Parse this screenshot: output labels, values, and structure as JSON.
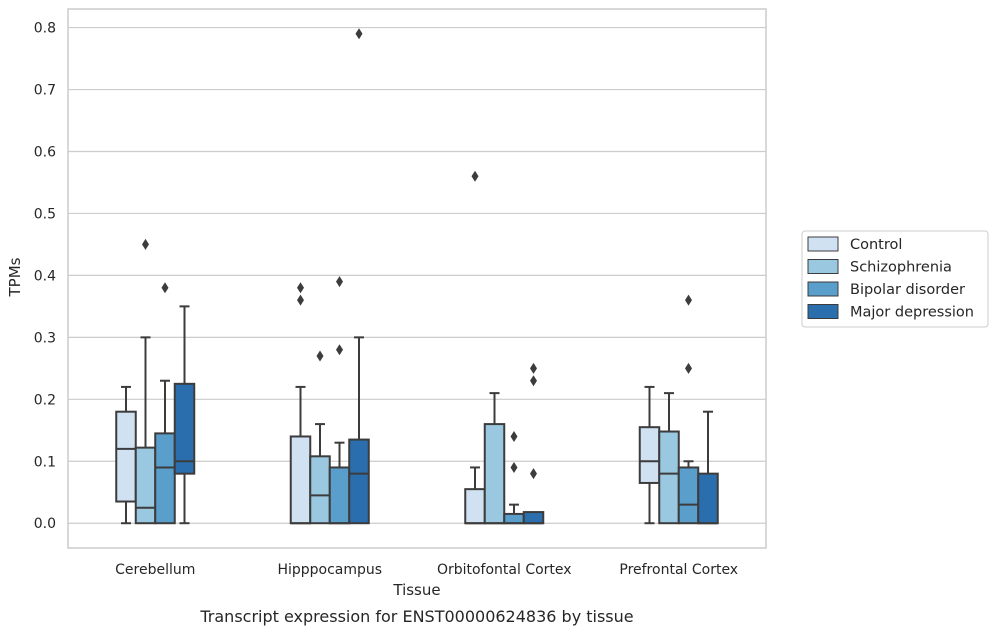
{
  "chart_data": {
    "type": "box",
    "title": "",
    "caption": "Transcript expression for ENST00000624836 by tissue",
    "xlabel": "Tissue",
    "ylabel": "TPMs",
    "ylim": [
      -0.04,
      0.83
    ],
    "yticks": [
      0.0,
      0.1,
      0.2,
      0.3,
      0.4,
      0.5,
      0.6,
      0.7,
      0.8
    ],
    "ytick_labels": [
      "0.0",
      "0.1",
      "0.2",
      "0.3",
      "0.4",
      "0.5",
      "0.6",
      "0.7",
      "0.8"
    ],
    "grid": true,
    "legend_position": "right",
    "categories": [
      "Cerebellum",
      "Hipppocampus",
      "Orbitofontal Cortex",
      "Prefrontal Cortex"
    ],
    "series": [
      {
        "name": "Control",
        "color": "#d0e1f2",
        "boxes": [
          {
            "whisker_low": 0.0,
            "q1": 0.035,
            "median": 0.12,
            "q3": 0.18,
            "whisker_high": 0.22,
            "outliers": []
          },
          {
            "whisker_low": 0.0,
            "q1": 0.0,
            "median": 0.0,
            "q3": 0.14,
            "whisker_high": 0.22,
            "outliers": [
              0.36,
              0.38
            ]
          },
          {
            "whisker_low": 0.0,
            "q1": 0.0,
            "median": 0.0,
            "q3": 0.055,
            "whisker_high": 0.09,
            "outliers": [
              0.56
            ]
          },
          {
            "whisker_low": 0.0,
            "q1": 0.065,
            "median": 0.1,
            "q3": 0.155,
            "whisker_high": 0.22,
            "outliers": []
          }
        ]
      },
      {
        "name": "Schizophrenia",
        "color": "#9ac8e0",
        "boxes": [
          {
            "whisker_low": 0.0,
            "q1": 0.0,
            "median": 0.025,
            "q3": 0.122,
            "whisker_high": 0.3,
            "outliers": [
              0.45
            ]
          },
          {
            "whisker_low": 0.0,
            "q1": 0.0,
            "median": 0.045,
            "q3": 0.108,
            "whisker_high": 0.16,
            "outliers": [
              0.27
            ]
          },
          {
            "whisker_low": 0.0,
            "q1": 0.0,
            "median": 0.0,
            "q3": 0.16,
            "whisker_high": 0.21,
            "outliers": []
          },
          {
            "whisker_low": 0.0,
            "q1": 0.0,
            "median": 0.08,
            "q3": 0.148,
            "whisker_high": 0.21,
            "outliers": []
          }
        ]
      },
      {
        "name": "Bipolar disorder",
        "color": "#5a9ecc",
        "boxes": [
          {
            "whisker_low": 0.0,
            "q1": 0.0,
            "median": 0.09,
            "q3": 0.145,
            "whisker_high": 0.23,
            "outliers": [
              0.38
            ]
          },
          {
            "whisker_low": 0.0,
            "q1": 0.0,
            "median": 0.0,
            "q3": 0.09,
            "whisker_high": 0.13,
            "outliers": [
              0.28,
              0.39
            ]
          },
          {
            "whisker_low": 0.0,
            "q1": 0.0,
            "median": 0.0,
            "q3": 0.015,
            "whisker_high": 0.03,
            "outliers": [
              0.09,
              0.14
            ]
          },
          {
            "whisker_low": 0.0,
            "q1": 0.0,
            "median": 0.03,
            "q3": 0.09,
            "whisker_high": 0.1,
            "outliers": [
              0.25,
              0.36
            ]
          }
        ]
      },
      {
        "name": "Major depression",
        "color": "#2a6ead",
        "boxes": [
          {
            "whisker_low": 0.0,
            "q1": 0.08,
            "median": 0.1,
            "q3": 0.225,
            "whisker_high": 0.35,
            "outliers": []
          },
          {
            "whisker_low": 0.0,
            "q1": 0.0,
            "median": 0.08,
            "q3": 0.135,
            "whisker_high": 0.3,
            "outliers": [
              0.79
            ]
          },
          {
            "whisker_low": 0.0,
            "q1": 0.0,
            "median": 0.0,
            "q3": 0.018,
            "whisker_high": 0.018,
            "outliers": [
              0.08,
              0.23,
              0.25
            ]
          },
          {
            "whisker_low": 0.0,
            "q1": 0.0,
            "median": 0.0,
            "q3": 0.08,
            "whisker_high": 0.18,
            "outliers": []
          }
        ]
      }
    ]
  },
  "colors": {
    "grid": "#cccccc",
    "frame": "#cccccc",
    "box_edge": "#3c3c3c"
  }
}
